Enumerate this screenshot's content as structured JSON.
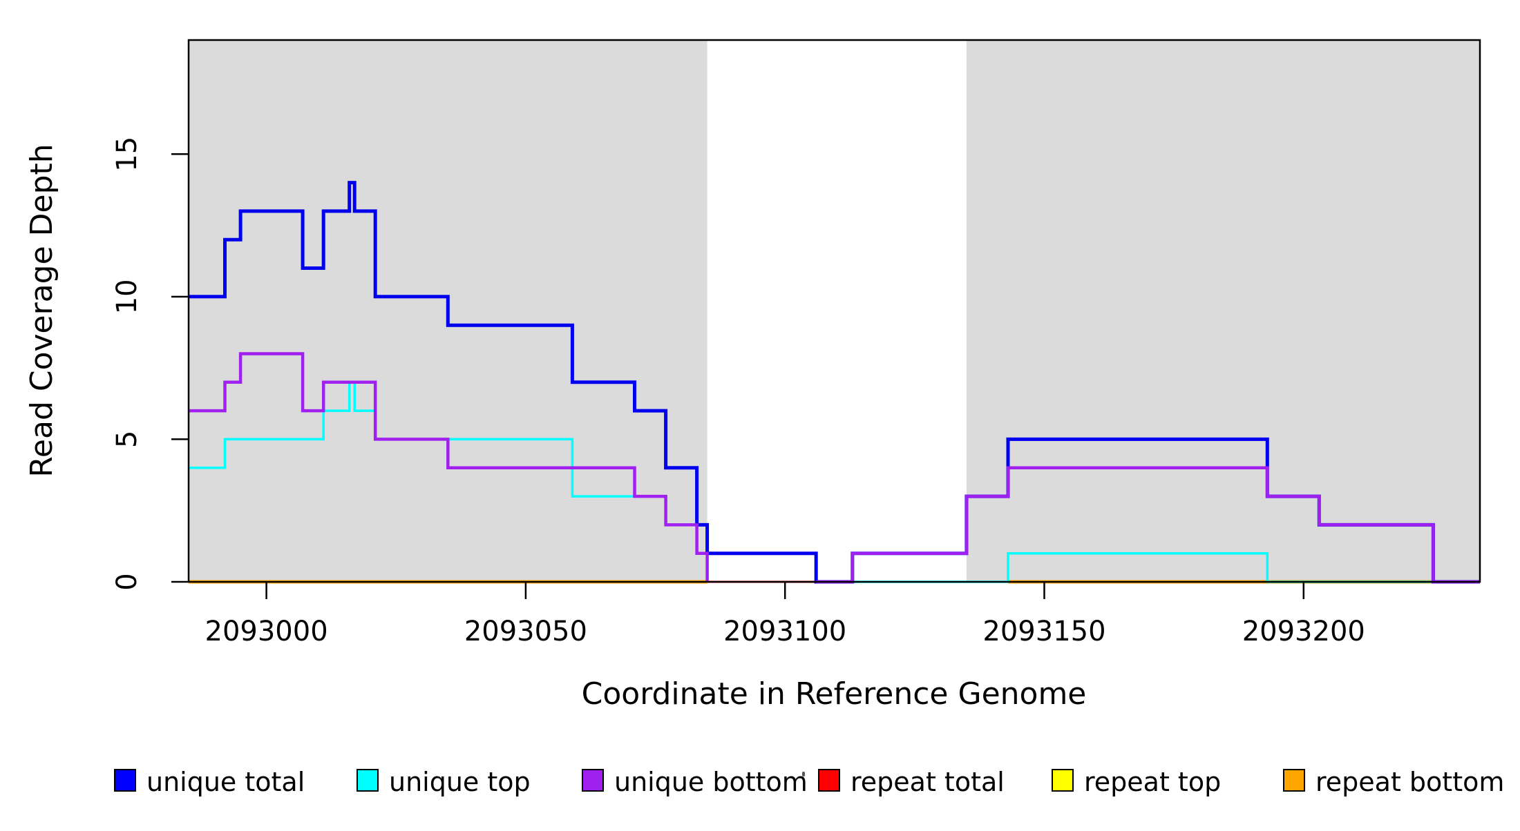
{
  "figure": {
    "background": "#ffffff"
  },
  "axes": {
    "x_title": "Coordinate in Reference Genome",
    "y_title": "Read Coverage Depth",
    "x_ticks": [
      2093000,
      2093050,
      2093100,
      2093150,
      2093200
    ],
    "y_ticks": [
      0,
      5,
      10,
      15
    ],
    "x_range": [
      2092985,
      2093234
    ],
    "y_range": [
      0,
      19
    ]
  },
  "chart_data": {
    "type": "line",
    "subtype": "step-after-coverage",
    "title": "",
    "xlabel": "Coordinate in Reference Genome",
    "ylabel": "Read Coverage Depth",
    "xlim": [
      2092985,
      2093234
    ],
    "ylim": [
      0,
      19
    ],
    "grid": false,
    "legend_position": "bottom",
    "shaded_regions": [
      {
        "name": "unique-region-1",
        "x0": 2092985,
        "x1": 2093085,
        "color": "#DBDBDB"
      },
      {
        "name": "unique-region-2",
        "x0": 2093135,
        "x1": 2093234,
        "color": "#DBDBDB"
      }
    ],
    "series": [
      {
        "name": "unique total",
        "color": "#0000EE",
        "line_width": 5,
        "draw_order": 4,
        "segments": [
          [
            [
              2092985,
              10
            ],
            [
              2092992,
              12
            ],
            [
              2092995,
              13
            ],
            [
              2093007,
              11
            ],
            [
              2093011,
              13
            ],
            [
              2093016,
              14
            ],
            [
              2093017,
              13
            ],
            [
              2093021,
              10
            ],
            [
              2093035,
              9
            ],
            [
              2093059,
              7
            ],
            [
              2093071,
              6
            ],
            [
              2093077,
              4
            ],
            [
              2093083,
              2
            ],
            [
              2093085,
              1
            ],
            [
              2093106,
              0
            ],
            [
              2093113,
              1
            ],
            [
              2093135,
              3
            ],
            [
              2093143,
              5
            ],
            [
              2093193,
              3
            ],
            [
              2093203,
              2
            ],
            [
              2093225,
              0
            ],
            [
              2093234,
              0
            ]
          ]
        ]
      },
      {
        "name": "unique top",
        "color": "#00FFFF",
        "line_width": 3.5,
        "draw_order": 3,
        "segments": [
          [
            [
              2092985,
              4
            ],
            [
              2092992,
              5
            ],
            [
              2093011,
              6
            ],
            [
              2093016,
              7
            ],
            [
              2093017,
              6
            ],
            [
              2093021,
              5
            ],
            [
              2093059,
              3
            ],
            [
              2093077,
              2
            ],
            [
              2093083,
              1
            ],
            [
              2093106,
              0
            ],
            [
              2093143,
              1
            ],
            [
              2093193,
              0
            ],
            [
              2093234,
              0
            ]
          ]
        ]
      },
      {
        "name": "unique bottom",
        "color": "#A020F0",
        "line_width": 4.5,
        "draw_order": 5,
        "segments": [
          [
            [
              2092985,
              6
            ],
            [
              2092992,
              7
            ],
            [
              2092995,
              8
            ],
            [
              2093007,
              6
            ],
            [
              2093011,
              7
            ],
            [
              2093021,
              5
            ],
            [
              2093035,
              4
            ],
            [
              2093071,
              3
            ],
            [
              2093077,
              2
            ],
            [
              2093083,
              1
            ],
            [
              2093085,
              0
            ]
          ],
          [
            [
              2093106,
              0
            ],
            [
              2093113,
              1
            ],
            [
              2093135,
              3
            ],
            [
              2093143,
              4
            ],
            [
              2093193,
              3
            ],
            [
              2093203,
              2
            ],
            [
              2093225,
              0
            ],
            [
              2093234,
              0
            ]
          ]
        ]
      },
      {
        "name": "repeat total",
        "color": "#FF0000",
        "line_width": 3,
        "draw_order": 1,
        "segments": [
          [
            [
              2092985,
              0
            ],
            [
              2093234,
              0
            ]
          ]
        ]
      },
      {
        "name": "repeat top",
        "color": "#FFFF00",
        "line_width": 3,
        "draw_order": 0,
        "segments": [
          [
            [
              2092985,
              0
            ],
            [
              2093234,
              0
            ]
          ]
        ]
      },
      {
        "name": "repeat bottom",
        "color": "#FFA500",
        "line_width": 5,
        "draw_order": 2,
        "segments": [
          [
            [
              2092985,
              0
            ],
            [
              2093085,
              0
            ]
          ],
          [
            [
              2093143,
              0
            ],
            [
              2093234,
              0
            ]
          ]
        ]
      }
    ]
  },
  "legend": {
    "items": [
      {
        "label": "unique total",
        "color": "#0000FF"
      },
      {
        "label": "unique top",
        "color": "#00FFFF"
      },
      {
        "label": "unique bottom",
        "color": "#A020F0"
      },
      {
        "label": "repeat total",
        "color": "#FF0000"
      },
      {
        "label": "repeat top",
        "color": "#FFFF00"
      },
      {
        "label": "repeat bottom",
        "color": "#FFA500"
      }
    ]
  }
}
